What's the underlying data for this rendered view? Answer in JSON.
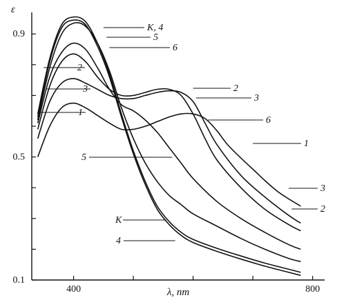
{
  "chart_data": {
    "type": "line",
    "xlabel": "λ, nm",
    "ylabel": "ε",
    "xlim": [
      330,
      820
    ],
    "ylim": [
      0.1,
      0.97
    ],
    "x_ticks": [
      400,
      500,
      600,
      700,
      800
    ],
    "x_tick_labels": [
      {
        "value": 400,
        "text": "400"
      },
      {
        "value": 800,
        "text": "800"
      }
    ],
    "y_ticks": [
      0.1,
      0.2,
      0.3,
      0.4,
      0.5,
      0.6,
      0.7,
      0.8,
      0.9
    ],
    "y_tick_labels": [
      {
        "value": 0.1,
        "text": "0.1"
      },
      {
        "value": 0.5,
        "text": "0.5"
      },
      {
        "value": 0.9,
        "text": "0.9"
      }
    ],
    "grid": false,
    "series": [
      {
        "name": "K",
        "label_side": "left",
        "points": [
          [
            340,
            0.64
          ],
          [
            360,
            0.82
          ],
          [
            380,
            0.93
          ],
          [
            400,
            0.955
          ],
          [
            420,
            0.94
          ],
          [
            440,
            0.87
          ],
          [
            460,
            0.77
          ],
          [
            480,
            0.64
          ],
          [
            500,
            0.52
          ],
          [
            520,
            0.42
          ],
          [
            540,
            0.34
          ],
          [
            560,
            0.29
          ],
          [
            580,
            0.255
          ],
          [
            600,
            0.232
          ],
          [
            640,
            0.203
          ],
          [
            680,
            0.178
          ],
          [
            720,
            0.155
          ],
          [
            760,
            0.135
          ],
          [
            780,
            0.125
          ]
        ]
      },
      {
        "name": "4",
        "label_side": "left",
        "points": [
          [
            340,
            0.63
          ],
          [
            360,
            0.81
          ],
          [
            380,
            0.92
          ],
          [
            400,
            0.945
          ],
          [
            420,
            0.93
          ],
          [
            440,
            0.86
          ],
          [
            460,
            0.76
          ],
          [
            480,
            0.63
          ],
          [
            500,
            0.51
          ],
          [
            520,
            0.41
          ],
          [
            540,
            0.33
          ],
          [
            560,
            0.28
          ],
          [
            580,
            0.245
          ],
          [
            600,
            0.222
          ],
          [
            640,
            0.193
          ],
          [
            680,
            0.168
          ],
          [
            720,
            0.145
          ],
          [
            760,
            0.125
          ],
          [
            780,
            0.115
          ]
        ]
      },
      {
        "name": "5",
        "label_side": "left",
        "points": [
          [
            340,
            0.62
          ],
          [
            360,
            0.79
          ],
          [
            380,
            0.9
          ],
          [
            400,
            0.935
          ],
          [
            420,
            0.925
          ],
          [
            440,
            0.87
          ],
          [
            460,
            0.78
          ],
          [
            480,
            0.66
          ],
          [
            500,
            0.56
          ],
          [
            520,
            0.48
          ],
          [
            540,
            0.42
          ],
          [
            560,
            0.375
          ],
          [
            580,
            0.345
          ],
          [
            600,
            0.315
          ],
          [
            640,
            0.275
          ],
          [
            680,
            0.235
          ],
          [
            720,
            0.2
          ],
          [
            760,
            0.17
          ],
          [
            780,
            0.16
          ]
        ]
      },
      {
        "name": "6",
        "label_side": "right",
        "points": [
          [
            340,
            0.61
          ],
          [
            360,
            0.76
          ],
          [
            380,
            0.84
          ],
          [
            400,
            0.87
          ],
          [
            420,
            0.85
          ],
          [
            440,
            0.79
          ],
          [
            460,
            0.72
          ],
          [
            480,
            0.67
          ],
          [
            500,
            0.65
          ],
          [
            520,
            0.62
          ],
          [
            540,
            0.58
          ],
          [
            560,
            0.53
          ],
          [
            580,
            0.48
          ],
          [
            600,
            0.43
          ],
          [
            640,
            0.355
          ],
          [
            680,
            0.3
          ],
          [
            720,
            0.255
          ],
          [
            760,
            0.215
          ],
          [
            780,
            0.2
          ]
        ]
      },
      {
        "name": "2",
        "label_side": "both",
        "points": [
          [
            340,
            0.59
          ],
          [
            360,
            0.73
          ],
          [
            380,
            0.81
          ],
          [
            400,
            0.835
          ],
          [
            420,
            0.81
          ],
          [
            440,
            0.76
          ],
          [
            460,
            0.72
          ],
          [
            480,
            0.7
          ],
          [
            500,
            0.7
          ],
          [
            520,
            0.71
          ],
          [
            540,
            0.72
          ],
          [
            560,
            0.72
          ],
          [
            580,
            0.7
          ],
          [
            600,
            0.64
          ],
          [
            620,
            0.56
          ],
          [
            640,
            0.49
          ],
          [
            680,
            0.4
          ],
          [
            720,
            0.33
          ],
          [
            760,
            0.28
          ],
          [
            780,
            0.26
          ]
        ]
      },
      {
        "name": "3",
        "label_side": "both",
        "points": [
          [
            340,
            0.56
          ],
          [
            360,
            0.68
          ],
          [
            380,
            0.74
          ],
          [
            400,
            0.755
          ],
          [
            420,
            0.74
          ],
          [
            440,
            0.72
          ],
          [
            460,
            0.7
          ],
          [
            480,
            0.69
          ],
          [
            500,
            0.69
          ],
          [
            520,
            0.7
          ],
          [
            540,
            0.71
          ],
          [
            560,
            0.715
          ],
          [
            580,
            0.71
          ],
          [
            600,
            0.68
          ],
          [
            620,
            0.61
          ],
          [
            640,
            0.54
          ],
          [
            680,
            0.44
          ],
          [
            720,
            0.37
          ],
          [
            760,
            0.31
          ],
          [
            780,
            0.285
          ]
        ]
      },
      {
        "name": "1",
        "label_side": "both",
        "points": [
          [
            340,
            0.5
          ],
          [
            360,
            0.6
          ],
          [
            380,
            0.66
          ],
          [
            400,
            0.675
          ],
          [
            420,
            0.66
          ],
          [
            440,
            0.635
          ],
          [
            460,
            0.61
          ],
          [
            480,
            0.59
          ],
          [
            500,
            0.59
          ],
          [
            520,
            0.6
          ],
          [
            540,
            0.615
          ],
          [
            560,
            0.63
          ],
          [
            580,
            0.64
          ],
          [
            600,
            0.64
          ],
          [
            620,
            0.625
          ],
          [
            640,
            0.585
          ],
          [
            660,
            0.535
          ],
          [
            700,
            0.46
          ],
          [
            740,
            0.39
          ],
          [
            780,
            0.34
          ]
        ]
      }
    ],
    "annotations": [
      {
        "text": "K, 4",
        "points_to": "K, 4",
        "at_x": 450
      },
      {
        "text": "5",
        "points_to": "5",
        "at_x": 455
      },
      {
        "text": "6",
        "points_to": "6",
        "at_x": 460
      },
      {
        "text": "2",
        "points_to": "2",
        "at_x": 350
      },
      {
        "text": "3",
        "points_to": "3",
        "at_x": 355
      },
      {
        "text": "1",
        "points_to": "1",
        "at_x": 345
      },
      {
        "text": "2",
        "points_to": "2",
        "at_x": 600
      },
      {
        "text": "3",
        "points_to": "3",
        "at_x": 605
      },
      {
        "text": "6",
        "points_to": "6",
        "at_x": 625
      },
      {
        "text": "1",
        "points_to": "1",
        "at_x": 700
      },
      {
        "text": "5",
        "points_to": "5",
        "at_x": 565
      },
      {
        "text": "3",
        "points_to": "3",
        "at_x": 760
      },
      {
        "text": "2",
        "points_to": "2",
        "at_x": 765
      },
      {
        "text": "K",
        "points_to": "K",
        "at_x": 555
      },
      {
        "text": "4",
        "points_to": "4",
        "at_x": 570
      }
    ]
  }
}
